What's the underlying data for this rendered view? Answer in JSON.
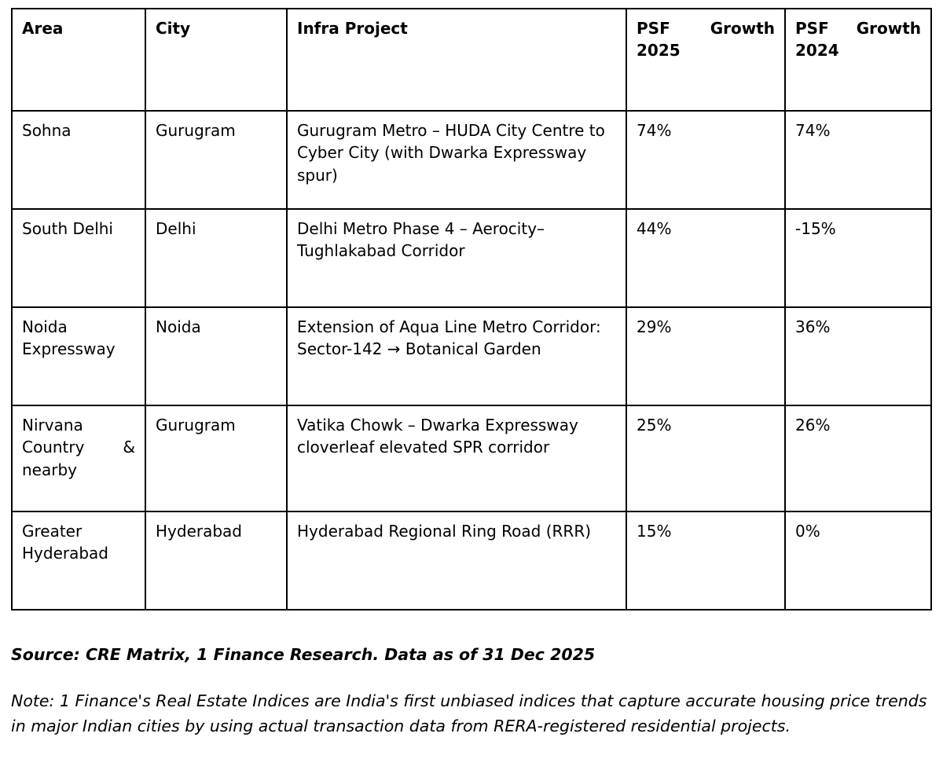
{
  "table": {
    "columns": [
      "Area",
      "City",
      "Infra Project",
      "PSF Growth 2025",
      "PSF Growth 2024"
    ],
    "rows": [
      {
        "area": "Sohna",
        "city": "Gurugram",
        "project": "Gurugram Metro – HUDA City Centre to Cyber City (with Dwarka Expressway spur)",
        "psf_growth_2025": "74%",
        "psf_growth_2024": "74%"
      },
      {
        "area": "South Delhi",
        "city": "Delhi",
        "project": "Delhi Metro Phase 4 – Aerocity–Tughlakabad Corridor",
        "psf_growth_2025": "44%",
        "psf_growth_2024": "-15%"
      },
      {
        "area": "Noida Expressway",
        "city": "Noida",
        "project": "Extension of Aqua Line Metro Corridor: Sector-142 → Botanical Garden",
        "psf_growth_2025": "29%",
        "psf_growth_2024": "36%"
      },
      {
        "area": "Nirvana Country & nearby",
        "city": "Gurugram",
        "project": "Vatika Chowk – Dwarka Expressway cloverleaf elevated SPR corridor",
        "psf_growth_2025": "25%",
        "psf_growth_2024": "26%"
      },
      {
        "area": "Greater Hyderabad",
        "city": "Hyderabad",
        "project": "Hyderabad Regional Ring Road (RRR)",
        "psf_growth_2025": "15%",
        "psf_growth_2024": "0%"
      }
    ]
  },
  "footer": {
    "source": "Source: CRE Matrix, 1 Finance Research. Data as of 31 Dec 2025",
    "note": "Note: 1 Finance's Real Estate Indices are India's first unbiased indices that capture accurate housing price trends in major Indian cities by using actual transaction data from RERA-registered residential projects."
  }
}
